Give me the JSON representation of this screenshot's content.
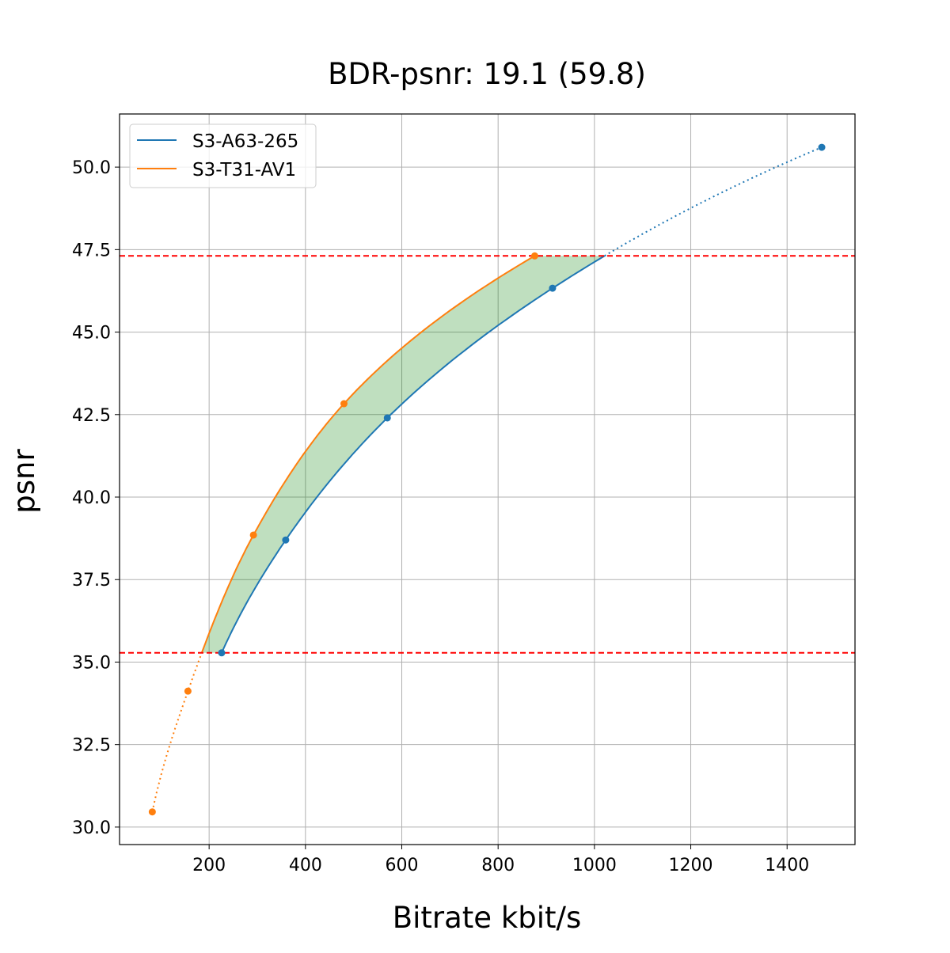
{
  "chart_data": {
    "type": "line",
    "title": "BDR-psnr: 19.1 (59.8)",
    "xlabel": "Bitrate kbit/s",
    "ylabel": "psnr",
    "xlim": [
      14,
      1541
    ],
    "ylim": [
      29.47,
      51.61
    ],
    "xticks": [
      200,
      400,
      600,
      800,
      1000,
      1200,
      1400
    ],
    "yticks": [
      "30.0",
      "32.5",
      "35.0",
      "37.5",
      "40.0",
      "42.5",
      "45.0",
      "47.5",
      "50.0"
    ],
    "grid": true,
    "legend_position": "top-left",
    "hlines": [
      {
        "y": 47.31,
        "color": "#ff0000",
        "style": "dashed"
      },
      {
        "y": 35.28,
        "color": "#ff0000",
        "style": "dashed"
      }
    ],
    "fill_between_color": "#008000",
    "series": [
      {
        "name": "S3-A63-265",
        "color": "#1f77b4",
        "x": [
          226,
          359,
          570,
          913,
          1472
        ],
        "y": [
          35.28,
          38.7,
          42.4,
          46.33,
          50.6
        ]
      },
      {
        "name": "S3-T31-AV1",
        "color": "#ff7f0e",
        "x": [
          82,
          156,
          292,
          480,
          876
        ],
        "y": [
          30.46,
          34.12,
          38.85,
          42.83,
          47.31
        ]
      }
    ]
  }
}
